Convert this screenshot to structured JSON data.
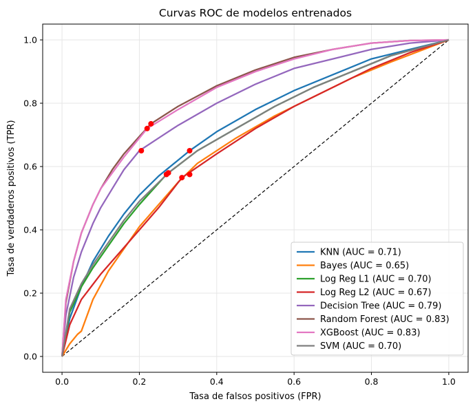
{
  "chart_data": {
    "type": "line",
    "title": "Curvas ROC de modelos entrenados",
    "xlabel": "Tasa de falsos positivos (FPR)",
    "ylabel": "Tasa de verdaderos positivos (TPR)",
    "xlim": [
      -0.05,
      1.05
    ],
    "ylim": [
      -0.05,
      1.05
    ],
    "xticks": [
      0.0,
      0.2,
      0.4,
      0.6,
      0.8,
      1.0
    ],
    "yticks": [
      0.0,
      0.2,
      0.4,
      0.6,
      0.8,
      1.0
    ],
    "xtick_labels": [
      "0.0",
      "0.2",
      "0.4",
      "0.6",
      "0.8",
      "1.0"
    ],
    "ytick_labels": [
      "0.0",
      "0.2",
      "0.4",
      "0.6",
      "0.8",
      "1.0"
    ],
    "grid": true,
    "legend_position": "lower-right",
    "diagonal": {
      "x": [
        0,
        1
      ],
      "y": [
        0,
        1
      ],
      "color": "#000000",
      "style": "dashed"
    },
    "marker_color": "#ff0000",
    "series": [
      {
        "name": "KNN (AUC = 0.71)",
        "color": "#1f77b4",
        "x": [
          0,
          0.02,
          0.05,
          0.08,
          0.12,
          0.16,
          0.2,
          0.25,
          0.33,
          0.4,
          0.5,
          0.6,
          0.7,
          0.8,
          0.9,
          1.0
        ],
        "y": [
          0,
          0.12,
          0.22,
          0.3,
          0.38,
          0.45,
          0.51,
          0.57,
          0.65,
          0.71,
          0.78,
          0.84,
          0.89,
          0.94,
          0.97,
          1.0
        ],
        "marker": [
          0.33,
          0.65
        ]
      },
      {
        "name": "Bayes (AUC = 0.65)",
        "color": "#ff7f0e",
        "x": [
          0,
          0.02,
          0.04,
          0.05,
          0.08,
          0.12,
          0.16,
          0.2,
          0.25,
          0.3,
          0.35,
          0.45,
          0.55,
          0.65,
          0.75,
          0.85,
          1.0
        ],
        "y": [
          0,
          0.04,
          0.07,
          0.08,
          0.18,
          0.27,
          0.34,
          0.41,
          0.48,
          0.55,
          0.61,
          0.69,
          0.76,
          0.82,
          0.88,
          0.93,
          1.0
        ],
        "marker": [
          0.33,
          0.575
        ]
      },
      {
        "name": "Log Reg L1 (AUC = 0.70)",
        "color": "#2ca02c",
        "x": [
          0,
          0.02,
          0.05,
          0.08,
          0.12,
          0.16,
          0.2,
          0.27,
          0.35,
          0.45,
          0.55,
          0.65,
          0.75,
          0.85,
          1.0
        ],
        "y": [
          0,
          0.14,
          0.22,
          0.28,
          0.35,
          0.42,
          0.48,
          0.575,
          0.65,
          0.72,
          0.79,
          0.85,
          0.9,
          0.95,
          1.0
        ],
        "marker": [
          0.27,
          0.575
        ]
      },
      {
        "name": "Log Reg L2 (AUC = 0.67)",
        "color": "#d62728",
        "x": [
          0,
          0.02,
          0.05,
          0.1,
          0.15,
          0.2,
          0.25,
          0.31,
          0.4,
          0.5,
          0.6,
          0.7,
          0.8,
          0.9,
          1.0
        ],
        "y": [
          0,
          0.1,
          0.18,
          0.26,
          0.33,
          0.4,
          0.47,
          0.565,
          0.64,
          0.72,
          0.79,
          0.85,
          0.91,
          0.96,
          1.0
        ],
        "marker": [
          0.31,
          0.565
        ]
      },
      {
        "name": "Decision Tree (AUC = 0.79)",
        "color": "#9467bd",
        "x": [
          0,
          0.01,
          0.03,
          0.05,
          0.08,
          0.1,
          0.13,
          0.16,
          0.2,
          0.25,
          0.3,
          0.4,
          0.5,
          0.6,
          0.7,
          0.8,
          0.9,
          1.0
        ],
        "y": [
          0,
          0.13,
          0.25,
          0.33,
          0.42,
          0.47,
          0.53,
          0.59,
          0.65,
          0.69,
          0.73,
          0.8,
          0.86,
          0.91,
          0.94,
          0.97,
          0.99,
          1.0
        ],
        "marker": [
          0.205,
          0.65
        ]
      },
      {
        "name": "Random Forest (AUC = 0.83)",
        "color": "#8c564b",
        "x": [
          0,
          0.01,
          0.03,
          0.05,
          0.08,
          0.1,
          0.13,
          0.16,
          0.2,
          0.23,
          0.3,
          0.4,
          0.5,
          0.6,
          0.7,
          0.8,
          0.9,
          1.0
        ],
        "y": [
          0,
          0.17,
          0.3,
          0.39,
          0.48,
          0.53,
          0.59,
          0.64,
          0.695,
          0.735,
          0.79,
          0.855,
          0.905,
          0.945,
          0.97,
          0.99,
          0.998,
          1.0
        ],
        "marker": [
          0.23,
          0.735
        ]
      },
      {
        "name": "XGBoost (AUC = 0.83)",
        "color": "#e377c2",
        "x": [
          0,
          0.01,
          0.03,
          0.05,
          0.08,
          0.1,
          0.13,
          0.16,
          0.2,
          0.22,
          0.3,
          0.4,
          0.5,
          0.6,
          0.7,
          0.8,
          0.9,
          1.0
        ],
        "y": [
          0,
          0.18,
          0.3,
          0.39,
          0.48,
          0.53,
          0.58,
          0.63,
          0.69,
          0.72,
          0.78,
          0.85,
          0.9,
          0.94,
          0.97,
          0.99,
          0.998,
          1.0
        ],
        "marker": [
          0.22,
          0.72
        ]
      },
      {
        "name": "SVM (AUC = 0.70)",
        "color": "#7f7f7f",
        "x": [
          0,
          0.02,
          0.05,
          0.08,
          0.12,
          0.16,
          0.2,
          0.275,
          0.35,
          0.45,
          0.55,
          0.65,
          0.75,
          0.85,
          1.0
        ],
        "y": [
          0,
          0.15,
          0.23,
          0.29,
          0.36,
          0.43,
          0.49,
          0.58,
          0.65,
          0.72,
          0.79,
          0.85,
          0.9,
          0.95,
          1.0
        ],
        "marker": [
          0.275,
          0.58
        ]
      }
    ]
  }
}
